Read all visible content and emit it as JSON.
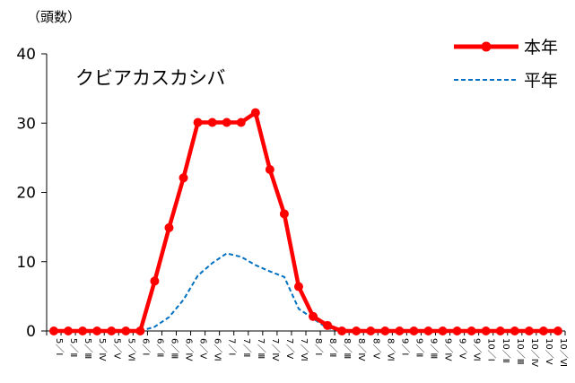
{
  "chart_data": {
    "type": "line",
    "y_unit_label": "（頭数）",
    "annotation": "クビアカスカシバ",
    "ylim": [
      0,
      40
    ],
    "yticks": [
      0,
      10,
      20,
      30,
      40
    ],
    "grid": false,
    "legend_position": "top-right",
    "categories": [
      "5／Ⅰ",
      "5／Ⅱ",
      "5／Ⅲ",
      "5／Ⅳ",
      "5／Ⅴ",
      "5／Ⅵ",
      "6／Ⅰ",
      "6／Ⅱ",
      "6／Ⅲ",
      "6／Ⅳ",
      "6／Ⅴ",
      "6／Ⅵ",
      "7／Ⅰ",
      "7／Ⅱ",
      "7／Ⅲ",
      "7／Ⅳ",
      "7／Ⅴ",
      "7／Ⅵ",
      "8／Ⅰ",
      "8／Ⅱ",
      "8／Ⅲ",
      "8／Ⅳ",
      "8／Ⅴ",
      "8／Ⅵ",
      "9／Ⅰ",
      "9／Ⅱ",
      "9／Ⅲ",
      "9／Ⅳ",
      "9／Ⅴ",
      "9／Ⅵ",
      "10／Ⅰ",
      "10／Ⅱ",
      "10／Ⅲ",
      "10／Ⅳ",
      "10／Ⅴ",
      "10／Ⅵ"
    ],
    "series": [
      {
        "name": "本年",
        "color": "#ff0000",
        "style": "solid-marker",
        "values": [
          0,
          0,
          0,
          0,
          0,
          0,
          0,
          7.2,
          14.9,
          22.1,
          30.1,
          30.1,
          30.1,
          30.1,
          31.5,
          23.3,
          16.9,
          6.4,
          2.1,
          0.8,
          0,
          0,
          0,
          0,
          0,
          0,
          0,
          0,
          0,
          0,
          0,
          0,
          0,
          0,
          0,
          0
        ]
      },
      {
        "name": "平年",
        "color": "#0070c0",
        "style": "dashed",
        "values": [
          0,
          0,
          0,
          0,
          0,
          0,
          0,
          0.6,
          2.0,
          4.5,
          8.0,
          9.8,
          11.2,
          10.7,
          9.5,
          8.6,
          7.8,
          3.2,
          1.8,
          0.4,
          0,
          0,
          0,
          0,
          0,
          0,
          0,
          0,
          0,
          0,
          0,
          0,
          0,
          0,
          0,
          0
        ]
      }
    ]
  }
}
